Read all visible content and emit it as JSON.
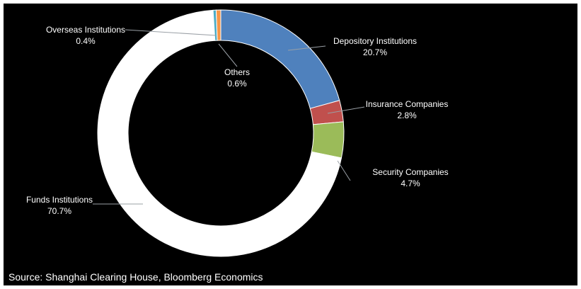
{
  "chart_data": {
    "type": "pie",
    "style": "donut",
    "slices": [
      {
        "name": "Depository Institutions",
        "value": 20.7,
        "label": "20.7%",
        "color": "#4f81bd"
      },
      {
        "name": "Insurance Companies",
        "value": 2.8,
        "label": "2.8%",
        "color": "#c0504d"
      },
      {
        "name": "Security Companies",
        "value": 4.7,
        "label": "4.7%",
        "color": "#9bbb59"
      },
      {
        "name": "Funds Institutions",
        "value": 70.7,
        "label": "70.7%",
        "color": "#ffffff"
      },
      {
        "name": "Overseas Institutions",
        "value": 0.4,
        "label": "0.4%",
        "color": "#4bacc6"
      },
      {
        "name": "Others",
        "value": 0.6,
        "label": "0.6%",
        "color": "#f79646"
      }
    ],
    "start_angle": "12 o'clock",
    "direction": "clockwise",
    "legend": "none",
    "background": "#000000"
  },
  "source": "Source: Shanghai Clearing House, Bloomberg Economics"
}
